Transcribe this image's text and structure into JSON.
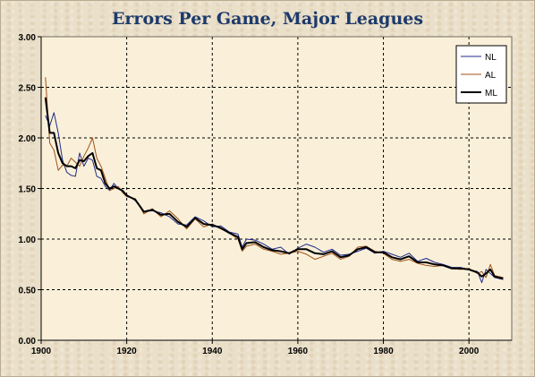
{
  "chart_data": {
    "type": "line",
    "title": "Errors Per Game, Major Leagues",
    "xlabel": "",
    "ylabel": "",
    "xlim": [
      1900,
      2010
    ],
    "ylim": [
      0,
      3.0
    ],
    "x_ticks": [
      1900,
      1920,
      1940,
      1960,
      1980,
      2000
    ],
    "y_ticks": [
      0.0,
      0.5,
      1.0,
      1.5,
      2.0,
      2.5,
      3.0
    ],
    "y_tick_labels": [
      "0.00",
      "0.50",
      "1.00",
      "1.50",
      "2.00",
      "2.50",
      "3.00"
    ],
    "grid": true,
    "legend_position": "top-right",
    "series": [
      {
        "name": "NL",
        "color": "#1f2a8c",
        "x": [
          1901,
          1902,
          1903,
          1904,
          1905,
          1906,
          1907,
          1908,
          1909,
          1910,
          1911,
          1912,
          1913,
          1914,
          1915,
          1916,
          1917,
          1918,
          1919,
          1920,
          1922,
          1924,
          1926,
          1928,
          1930,
          1932,
          1934,
          1936,
          1938,
          1940,
          1942,
          1944,
          1946,
          1947,
          1948,
          1950,
          1952,
          1954,
          1956,
          1958,
          1960,
          1962,
          1964,
          1966,
          1968,
          1970,
          1972,
          1974,
          1976,
          1978,
          1980,
          1982,
          1984,
          1986,
          1988,
          1990,
          1992,
          1994,
          1996,
          1998,
          2000,
          2002,
          2003,
          2004,
          2005,
          2006,
          2008
        ],
        "values": [
          2.22,
          2.12,
          2.25,
          2.05,
          1.78,
          1.66,
          1.63,
          1.62,
          1.85,
          1.72,
          1.8,
          1.78,
          1.62,
          1.6,
          1.52,
          1.48,
          1.55,
          1.5,
          1.48,
          1.44,
          1.38,
          1.27,
          1.28,
          1.26,
          1.22,
          1.15,
          1.14,
          1.22,
          1.18,
          1.12,
          1.13,
          1.07,
          1.05,
          0.92,
          1.0,
          0.99,
          0.95,
          0.9,
          0.92,
          0.85,
          0.91,
          0.95,
          0.92,
          0.87,
          0.9,
          0.84,
          0.85,
          0.88,
          0.91,
          0.86,
          0.88,
          0.85,
          0.82,
          0.86,
          0.78,
          0.81,
          0.77,
          0.75,
          0.72,
          0.72,
          0.7,
          0.68,
          0.57,
          0.7,
          0.66,
          0.62,
          0.6
        ]
      },
      {
        "name": "AL",
        "color": "#a0521a",
        "x": [
          1901,
          1902,
          1903,
          1904,
          1905,
          1906,
          1907,
          1908,
          1909,
          1910,
          1911,
          1912,
          1913,
          1914,
          1915,
          1916,
          1917,
          1918,
          1919,
          1920,
          1922,
          1924,
          1926,
          1928,
          1930,
          1932,
          1934,
          1936,
          1938,
          1940,
          1942,
          1944,
          1946,
          1947,
          1948,
          1950,
          1952,
          1954,
          1956,
          1958,
          1960,
          1962,
          1964,
          1966,
          1968,
          1970,
          1972,
          1974,
          1976,
          1978,
          1980,
          1982,
          1984,
          1986,
          1988,
          1990,
          1992,
          1994,
          1996,
          1998,
          2000,
          2002,
          2003,
          2004,
          2005,
          2006,
          2008
        ],
        "values": [
          2.6,
          1.95,
          1.88,
          1.68,
          1.73,
          1.72,
          1.8,
          1.76,
          1.72,
          1.82,
          1.9,
          2.0,
          1.8,
          1.72,
          1.6,
          1.48,
          1.5,
          1.52,
          1.46,
          1.42,
          1.4,
          1.25,
          1.3,
          1.22,
          1.28,
          1.2,
          1.1,
          1.2,
          1.12,
          1.15,
          1.1,
          1.06,
          1.0,
          0.88,
          0.93,
          0.95,
          0.9,
          0.88,
          0.85,
          0.86,
          0.88,
          0.85,
          0.8,
          0.83,
          0.86,
          0.8,
          0.83,
          0.92,
          0.93,
          0.88,
          0.86,
          0.8,
          0.78,
          0.8,
          0.76,
          0.74,
          0.73,
          0.74,
          0.71,
          0.7,
          0.71,
          0.66,
          0.68,
          0.62,
          0.75,
          0.64,
          0.62
        ]
      },
      {
        "name": "ML",
        "color": "#000000",
        "x": [
          1901,
          1902,
          1903,
          1904,
          1905,
          1906,
          1907,
          1908,
          1909,
          1910,
          1911,
          1912,
          1913,
          1914,
          1915,
          1916,
          1917,
          1918,
          1919,
          1920,
          1922,
          1924,
          1926,
          1928,
          1930,
          1932,
          1934,
          1936,
          1938,
          1940,
          1942,
          1944,
          1946,
          1947,
          1948,
          1950,
          1952,
          1954,
          1956,
          1958,
          1960,
          1962,
          1964,
          1966,
          1968,
          1970,
          1972,
          1974,
          1976,
          1978,
          1980,
          1982,
          1984,
          1986,
          1988,
          1990,
          1992,
          1994,
          1996,
          1998,
          2000,
          2002,
          2003,
          2004,
          2005,
          2006,
          2008
        ],
        "values": [
          2.4,
          2.05,
          2.05,
          1.85,
          1.75,
          1.72,
          1.72,
          1.7,
          1.78,
          1.77,
          1.82,
          1.85,
          1.7,
          1.68,
          1.55,
          1.5,
          1.52,
          1.5,
          1.48,
          1.43,
          1.39,
          1.27,
          1.29,
          1.24,
          1.25,
          1.17,
          1.12,
          1.21,
          1.15,
          1.14,
          1.11,
          1.06,
          1.02,
          0.9,
          0.96,
          0.97,
          0.92,
          0.89,
          0.88,
          0.86,
          0.9,
          0.9,
          0.86,
          0.85,
          0.88,
          0.82,
          0.84,
          0.9,
          0.92,
          0.87,
          0.87,
          0.82,
          0.8,
          0.83,
          0.77,
          0.77,
          0.75,
          0.74,
          0.71,
          0.71,
          0.7,
          0.67,
          0.63,
          0.66,
          0.7,
          0.63,
          0.61
        ]
      }
    ]
  }
}
